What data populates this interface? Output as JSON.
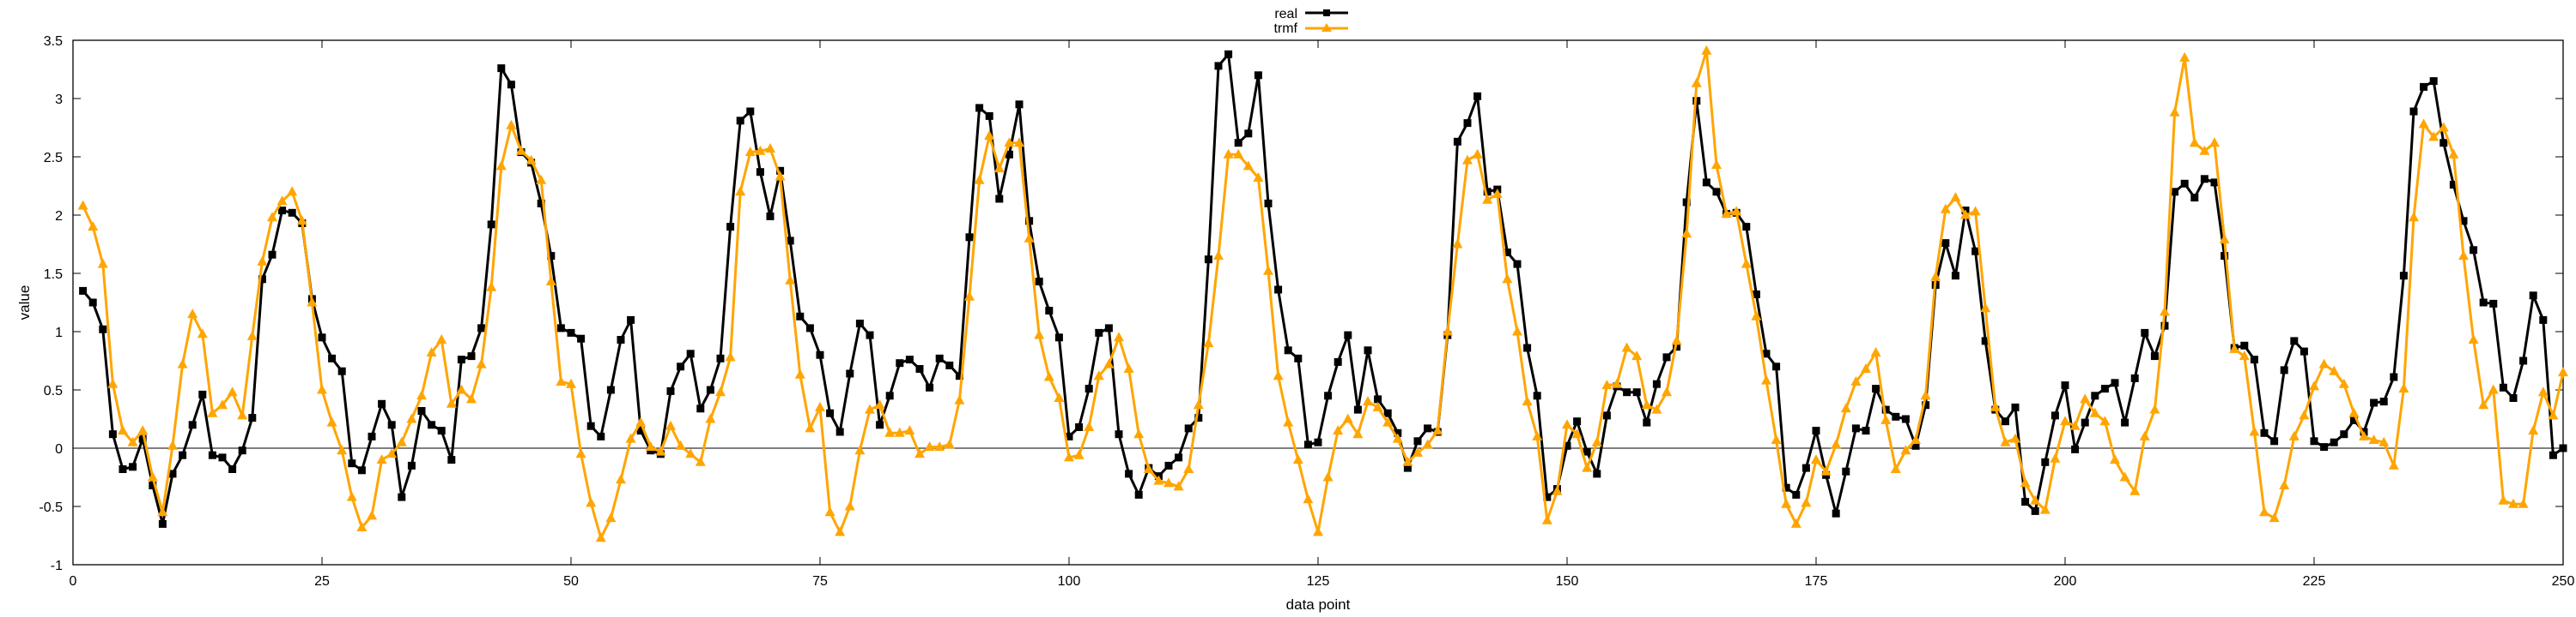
{
  "chart_data": {
    "type": "line",
    "xlabel": "data point",
    "ylabel": "value",
    "xlim": [
      0,
      250
    ],
    "ylim": [
      -1,
      3.5
    ],
    "xticks": [
      0,
      25,
      50,
      75,
      100,
      125,
      150,
      175,
      200,
      225,
      250
    ],
    "yticks": [
      -1,
      -0.5,
      0,
      0.5,
      1,
      1.5,
      2,
      2.5,
      3,
      3.5
    ],
    "zero_line": true,
    "grid": false,
    "legend_position": "top-center",
    "series": [
      {
        "name": "real",
        "color": "#000000",
        "marker": "square",
        "x": [
          1,
          2,
          3,
          4,
          5,
          6,
          7,
          8,
          9,
          10,
          11,
          12,
          13,
          14,
          15,
          16,
          17,
          18,
          19,
          20,
          21,
          22,
          23,
          24,
          25,
          26,
          27,
          28,
          29,
          30,
          31,
          32,
          33,
          34,
          35,
          36,
          37,
          38,
          39,
          40,
          41,
          42,
          43,
          44,
          45,
          46,
          47,
          48,
          49,
          50,
          51,
          52,
          53,
          54,
          55,
          56,
          57,
          58,
          59,
          60,
          61,
          62,
          63,
          64,
          65,
          66,
          67,
          68,
          69,
          70,
          71,
          72,
          73,
          74,
          75,
          76,
          77,
          78,
          79,
          80,
          81,
          82,
          83,
          84,
          85,
          86,
          87,
          88,
          89,
          90,
          91,
          92,
          93,
          94,
          95,
          96,
          97,
          98,
          99,
          100,
          101,
          102,
          103,
          104,
          105,
          106,
          107,
          108,
          109,
          110,
          111,
          112,
          113,
          114,
          115,
          116,
          117,
          118,
          119,
          120,
          121,
          122,
          123,
          124,
          125,
          126,
          127,
          128,
          129,
          130,
          131,
          132,
          133,
          134,
          135,
          136,
          137,
          138,
          139,
          140,
          141,
          142,
          143,
          144,
          145,
          146,
          147,
          148,
          149,
          150,
          151,
          152,
          153,
          154,
          155,
          156,
          157,
          158,
          159,
          160,
          161,
          162,
          163,
          164,
          165,
          166,
          167,
          168,
          169,
          170,
          171,
          172,
          173,
          174,
          175,
          176,
          177,
          178,
          179,
          180,
          181,
          182,
          183,
          184,
          185,
          186,
          187,
          188,
          189,
          190,
          191,
          192,
          193,
          194,
          195,
          196,
          197,
          198,
          199,
          200,
          201,
          202,
          203,
          204,
          205,
          206,
          207,
          208,
          209,
          210,
          211,
          212,
          213,
          214,
          215,
          216,
          217,
          218,
          219,
          220,
          221,
          222,
          223,
          224,
          225,
          226,
          227,
          228,
          229,
          230,
          231,
          232,
          233,
          234,
          235,
          236,
          237,
          238,
          239,
          240,
          241,
          242,
          243,
          244,
          245,
          246,
          247,
          248,
          249,
          250
        ],
        "y": [
          1.35,
          1.25,
          1.02,
          0.12,
          -0.18,
          -0.16,
          0.08,
          -0.32,
          -0.65,
          -0.22,
          -0.06,
          0.2,
          0.46,
          -0.06,
          -0.08,
          -0.18,
          -0.02,
          0.26,
          1.45,
          1.66,
          2.04,
          2.02,
          1.93,
          1.28,
          0.95,
          0.77,
          0.66,
          -0.13,
          -0.19,
          0.1,
          0.38,
          0.2,
          -0.42,
          -0.15,
          0.32,
          0.2,
          0.15,
          -0.1,
          0.76,
          0.79,
          1.03,
          1.92,
          3.26,
          3.12,
          2.54,
          2.45,
          2.1,
          1.65,
          1.03,
          0.99,
          0.94,
          0.19,
          0.1,
          0.5,
          0.93,
          1.1,
          0.15,
          -0.02,
          -0.05,
          0.49,
          0.7,
          0.81,
          0.34,
          0.5,
          0.77,
          1.9,
          2.81,
          2.89,
          2.37,
          1.99,
          2.38,
          1.78,
          1.13,
          1.03,
          0.8,
          0.3,
          0.14,
          0.64,
          1.07,
          0.97,
          0.2,
          0.45,
          0.73,
          0.76,
          0.68,
          0.52,
          0.77,
          0.71,
          0.62,
          1.81,
          2.92,
          2.85,
          2.14,
          2.52,
          2.95,
          1.95,
          1.43,
          1.18,
          0.95,
          0.1,
          0.18,
          0.51,
          0.99,
          1.03,
          0.12,
          -0.22,
          -0.4,
          -0.17,
          -0.24,
          -0.15,
          -0.08,
          0.17,
          0.26,
          1.62,
          3.28,
          3.38,
          2.62,
          2.7,
          3.2,
          2.1,
          1.36,
          0.84,
          0.77,
          0.03,
          0.05,
          0.45,
          0.74,
          0.97,
          0.33,
          0.84,
          0.42,
          0.3,
          0.13,
          -0.17,
          0.06,
          0.17,
          0.14,
          0.97,
          2.63,
          2.79,
          3.02,
          2.2,
          2.22,
          1.68,
          1.58,
          0.86,
          0.45,
          -0.42,
          -0.35,
          0.02,
          0.23,
          -0.03,
          -0.22,
          0.28,
          0.53,
          0.48,
          0.48,
          0.22,
          0.55,
          0.78,
          0.87,
          2.11,
          2.98,
          2.28,
          2.2,
          2.01,
          2.02,
          1.9,
          1.32,
          0.81,
          0.7,
          -0.34,
          -0.4,
          -0.17,
          0.15,
          -0.23,
          -0.56,
          -0.2,
          0.17,
          0.15,
          0.51,
          0.33,
          0.27,
          0.25,
          0.02,
          0.37,
          1.4,
          1.76,
          1.48,
          2.04,
          1.69,
          0.92,
          0.33,
          0.23,
          0.35,
          -0.46,
          -0.54,
          -0.12,
          0.28,
          0.54,
          -0.01,
          0.22,
          0.45,
          0.51,
          0.56,
          0.22,
          0.6,
          0.99,
          0.79,
          1.05,
          2.2,
          2.27,
          2.15,
          2.31,
          2.28,
          1.65,
          0.86,
          0.88,
          0.76,
          0.13,
          0.06,
          0.67,
          0.92,
          0.83,
          0.06,
          0.01,
          0.05,
          0.12,
          0.24,
          0.14,
          0.39,
          0.4,
          0.61,
          1.48,
          2.89,
          3.1,
          3.15,
          2.62,
          2.26,
          1.95,
          1.7,
          1.25,
          1.24,
          0.52,
          0.43,
          0.75,
          1.31,
          1.1,
          -0.06,
          0
        ]
      },
      {
        "name": "trmf",
        "color": "#ffa500",
        "marker": "triangle",
        "x": [
          1,
          2,
          3,
          4,
          5,
          6,
          7,
          8,
          9,
          10,
          11,
          12,
          13,
          14,
          15,
          16,
          17,
          18,
          19,
          20,
          21,
          22,
          23,
          24,
          25,
          26,
          27,
          28,
          29,
          30,
          31,
          32,
          33,
          34,
          35,
          36,
          37,
          38,
          39,
          40,
          41,
          42,
          43,
          44,
          45,
          46,
          47,
          48,
          49,
          50,
          51,
          52,
          53,
          54,
          55,
          56,
          57,
          58,
          59,
          60,
          61,
          62,
          63,
          64,
          65,
          66,
          67,
          68,
          69,
          70,
          71,
          72,
          73,
          74,
          75,
          76,
          77,
          78,
          79,
          80,
          81,
          82,
          83,
          84,
          85,
          86,
          87,
          88,
          89,
          90,
          91,
          92,
          93,
          94,
          95,
          96,
          97,
          98,
          99,
          100,
          101,
          102,
          103,
          104,
          105,
          106,
          107,
          108,
          109,
          110,
          111,
          112,
          113,
          114,
          115,
          116,
          117,
          118,
          119,
          120,
          121,
          122,
          123,
          124,
          125,
          126,
          127,
          128,
          129,
          130,
          131,
          132,
          133,
          134,
          135,
          136,
          137,
          138,
          139,
          140,
          141,
          142,
          143,
          144,
          145,
          146,
          147,
          148,
          149,
          150,
          151,
          152,
          153,
          154,
          155,
          156,
          157,
          158,
          159,
          160,
          161,
          162,
          163,
          164,
          165,
          166,
          167,
          168,
          169,
          170,
          171,
          172,
          173,
          174,
          175,
          176,
          177,
          178,
          179,
          180,
          181,
          182,
          183,
          184,
          185,
          186,
          187,
          188,
          189,
          190,
          191,
          192,
          193,
          194,
          195,
          196,
          197,
          198,
          199,
          200,
          201,
          202,
          203,
          204,
          205,
          206,
          207,
          208,
          209,
          210,
          211,
          212,
          213,
          214,
          215,
          216,
          217,
          218,
          219,
          220,
          221,
          222,
          223,
          224,
          225,
          226,
          227,
          228,
          229,
          230,
          231,
          232,
          233,
          234,
          235,
          236,
          237,
          238,
          239,
          240,
          241,
          242,
          243,
          244,
          245,
          246,
          247,
          248,
          249,
          250
        ],
        "y": [
          2.08,
          1.9,
          1.58,
          0.55,
          0.15,
          0.05,
          0.15,
          -0.25,
          -0.55,
          0.02,
          0.72,
          1.15,
          0.98,
          0.3,
          0.37,
          0.48,
          0.28,
          0.96,
          1.6,
          1.98,
          2.12,
          2.2,
          1.95,
          1.25,
          0.5,
          0.22,
          -0.02,
          -0.42,
          -0.68,
          -0.58,
          -0.1,
          -0.05,
          0.05,
          0.25,
          0.45,
          0.82,
          0.93,
          0.38,
          0.5,
          0.42,
          0.72,
          1.38,
          2.42,
          2.77,
          2.55,
          2.47,
          2.3,
          1.43,
          0.57,
          0.55,
          -0.05,
          -0.47,
          -0.77,
          -0.6,
          -0.27,
          0.08,
          0.22,
          0.01,
          -0.03,
          0.19,
          0.02,
          -0.05,
          -0.12,
          0.25,
          0.48,
          0.78,
          2.2,
          2.54,
          2.55,
          2.57,
          2.33,
          1.44,
          0.63,
          0.17,
          0.35,
          -0.55,
          -0.72,
          -0.5,
          -0.02,
          0.33,
          0.37,
          0.13,
          0.13,
          0.15,
          -0.05,
          0.01,
          0.01,
          0.03,
          0.41,
          1.3,
          2.3,
          2.68,
          2.4,
          2.62,
          2.62,
          1.8,
          0.97,
          0.61,
          0.43,
          -0.08,
          -0.06,
          0.18,
          0.62,
          0.72,
          0.95,
          0.68,
          0.12,
          -0.18,
          -0.28,
          -0.3,
          -0.33,
          -0.18,
          0.37,
          0.9,
          1.65,
          2.52,
          2.52,
          2.42,
          2.32,
          1.52,
          0.62,
          0.22,
          -0.1,
          -0.44,
          -0.72,
          -0.25,
          0.15,
          0.25,
          0.12,
          0.4,
          0.35,
          0.22,
          0.08,
          -0.12,
          -0.04,
          0.03,
          0.15,
          1.0,
          1.75,
          2.47,
          2.52,
          2.13,
          2.18,
          1.45,
          1.0,
          0.4,
          0.1,
          -0.62,
          -0.37,
          0.2,
          0.12,
          -0.17,
          0.05,
          0.54,
          0.55,
          0.86,
          0.79,
          0.37,
          0.33,
          0.48,
          0.92,
          1.84,
          3.13,
          3.41,
          2.43,
          2.01,
          2.03,
          1.58,
          1.13,
          0.58,
          0.07,
          -0.48,
          -0.65,
          -0.47,
          -0.1,
          -0.2,
          0.03,
          0.34,
          0.57,
          0.68,
          0.82,
          0.24,
          -0.18,
          -0.02,
          0.07,
          0.45,
          1.47,
          2.05,
          2.15,
          2.0,
          2.03,
          1.2,
          0.35,
          0.05,
          0.08,
          -0.3,
          -0.45,
          -0.53,
          -0.09,
          0.23,
          0.19,
          0.42,
          0.3,
          0.23,
          -0.1,
          -0.25,
          -0.37,
          0.1,
          0.33,
          1.17,
          2.88,
          3.35,
          2.62,
          2.55,
          2.62,
          1.79,
          0.85,
          0.79,
          0.14,
          -0.55,
          -0.6,
          -0.32,
          0.1,
          0.28,
          0.53,
          0.72,
          0.66,
          0.55,
          0.3,
          0.1,
          0.07,
          0.05,
          -0.15,
          0.51,
          1.98,
          2.78,
          2.67,
          2.75,
          2.52,
          1.65,
          0.93,
          0.37,
          0.5,
          -0.45,
          -0.48,
          -0.48,
          0.15,
          0.48,
          0.28,
          0.65
        ]
      }
    ]
  }
}
